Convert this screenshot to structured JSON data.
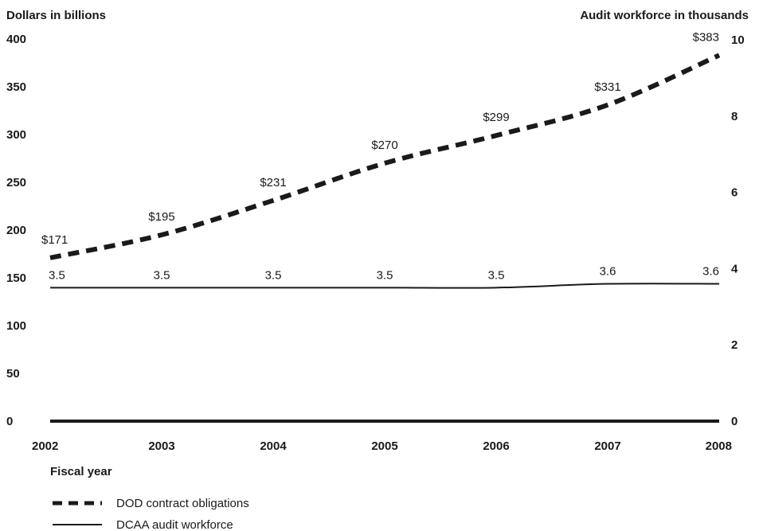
{
  "chart_data": {
    "type": "line",
    "title": "",
    "x": [
      "2002",
      "2003",
      "2004",
      "2005",
      "2006",
      "2007",
      "2008"
    ],
    "xlabel": "Fiscal year",
    "ylabel_left": "Dollars in billions",
    "ylabel_right": "Audit workforce in thousands",
    "ylim_left": [
      0,
      400
    ],
    "ylim_right": [
      0,
      10
    ],
    "yticks_left": [
      "0",
      "50",
      "100",
      "150",
      "200",
      "250",
      "300",
      "350",
      "400"
    ],
    "yticks_right": [
      "0",
      "2",
      "4",
      "6",
      "8",
      "10"
    ],
    "grid": false,
    "legend_position": "bottom-left",
    "series": [
      {
        "name": "DOD contract obligations",
        "axis": "left",
        "style": "dashed",
        "color": "#1a1a1a",
        "values": [
          171,
          195,
          231,
          270,
          299,
          331,
          383
        ],
        "labels": [
          "$171",
          "$195",
          "$231",
          "$270",
          "$299",
          "$331",
          "$383"
        ]
      },
      {
        "name": "DCAA audit workforce",
        "axis": "right",
        "style": "solid",
        "color": "#1a1a1a",
        "values": [
          3.5,
          3.5,
          3.5,
          3.5,
          3.5,
          3.6,
          3.6
        ],
        "labels": [
          "3.5",
          "3.5",
          "3.5",
          "3.5",
          "3.5",
          "3.6",
          "3.6"
        ]
      }
    ]
  }
}
